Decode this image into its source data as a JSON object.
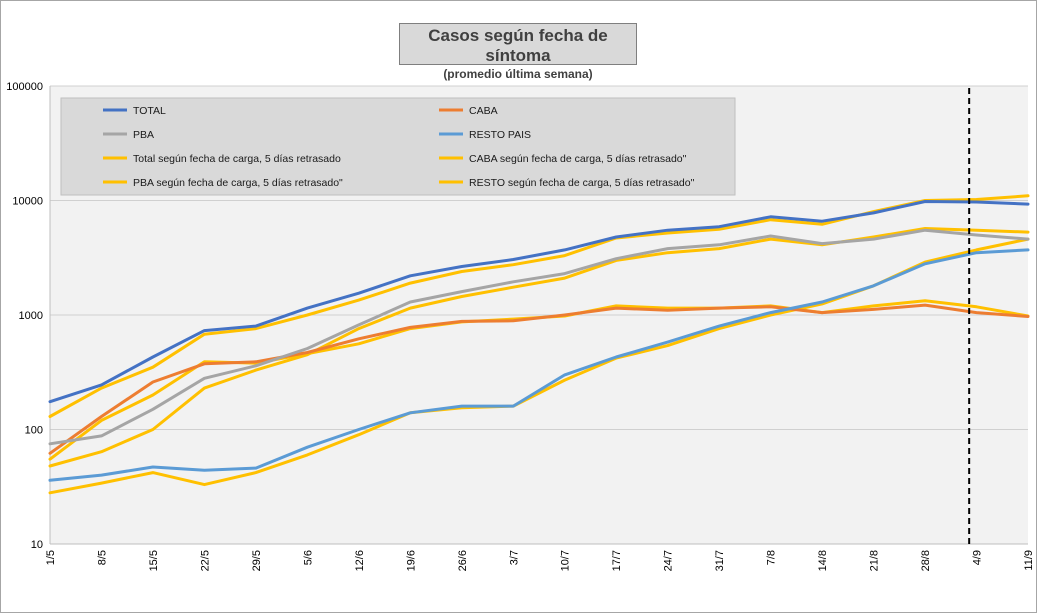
{
  "chart_data": {
    "type": "line",
    "title": "Casos según fecha de síntoma",
    "subtitle": "(promedio última semana)",
    "yscale": "log",
    "ylim": [
      10,
      100000
    ],
    "ytick_labels": [
      "10",
      "100",
      "1000",
      "10000",
      "100000"
    ],
    "grid": "horizontal",
    "legend_position": "top-left",
    "x_start": "1/5",
    "x_end": "11/9",
    "xtick_labels": [
      "1/5",
      "8/5",
      "15/5",
      "22/5",
      "29/5",
      "5/6",
      "12/6",
      "19/6",
      "26/6",
      "3/7",
      "10/7",
      "17/7",
      "24/7",
      "31/7",
      "7/8",
      "14/8",
      "21/8",
      "28/8",
      "4/9",
      "11/9"
    ],
    "vline": {
      "x": "3/9",
      "style": "dashed",
      "color": "#000000"
    },
    "series": [
      {
        "name": "TOTAL",
        "color": "#4472c4",
        "x": [
          "1/5",
          "8/5",
          "15/5",
          "22/5",
          "29/5",
          "5/6",
          "12/6",
          "19/6",
          "26/6",
          "3/7",
          "10/7",
          "17/7",
          "24/7",
          "31/7",
          "7/8",
          "14/8",
          "21/8",
          "28/8",
          "4/9",
          "11/9"
        ],
        "values": [
          175,
          245,
          430,
          730,
          800,
          1150,
          1550,
          2200,
          2650,
          3050,
          3700,
          4800,
          5500,
          5900,
          7200,
          6600,
          7800,
          9800,
          9700,
          9300
        ]
      },
      {
        "name": "CABA",
        "color": "#ed7d31",
        "x": [
          "1/5",
          "8/5",
          "15/5",
          "22/5",
          "29/5",
          "5/6",
          "12/6",
          "19/6",
          "26/6",
          "3/7",
          "10/7",
          "17/7",
          "24/7",
          "31/7",
          "7/8",
          "14/8",
          "21/8",
          "28/8",
          "4/9",
          "11/9"
        ],
        "values": [
          62,
          130,
          260,
          375,
          390,
          470,
          620,
          780,
          880,
          890,
          1000,
          1150,
          1100,
          1150,
          1180,
          1050,
          1120,
          1220,
          1050,
          970
        ]
      },
      {
        "name": "PBA",
        "color": "#a5a5a5",
        "x": [
          "1/5",
          "8/5",
          "15/5",
          "22/5",
          "29/5",
          "5/6",
          "12/6",
          "19/6",
          "26/6",
          "3/7",
          "10/7",
          "17/7",
          "24/7",
          "31/7",
          "7/8",
          "14/8",
          "21/8",
          "28/8",
          "4/9",
          "11/9"
        ],
        "values": [
          75,
          88,
          150,
          280,
          360,
          510,
          820,
          1300,
          1600,
          1950,
          2300,
          3100,
          3800,
          4100,
          4900,
          4200,
          4600,
          5500,
          5000,
          4600
        ]
      },
      {
        "name": "RESTO PAIS",
        "color": "#5b9bd5",
        "x": [
          "1/5",
          "8/5",
          "15/5",
          "22/5",
          "29/5",
          "5/6",
          "12/6",
          "19/6",
          "26/6",
          "3/7",
          "10/7",
          "17/7",
          "24/7",
          "31/7",
          "7/8",
          "14/8",
          "21/8",
          "28/8",
          "4/9",
          "11/9"
        ],
        "values": [
          36,
          40,
          47,
          44,
          46,
          70,
          100,
          140,
          160,
          160,
          300,
          430,
          580,
          800,
          1050,
          1300,
          1800,
          2800,
          3500,
          3700
        ]
      },
      {
        "name": "Total según fecha de carga, 5 días retrasado",
        "color": "#ffc000",
        "x": [
          "1/5",
          "8/5",
          "15/5",
          "22/5",
          "29/5",
          "5/6",
          "12/6",
          "19/6",
          "26/6",
          "3/7",
          "10/7",
          "17/7",
          "24/7",
          "31/7",
          "7/8",
          "14/8",
          "21/8",
          "28/8",
          "4/9",
          "11/9"
        ],
        "values": [
          130,
          230,
          350,
          680,
          760,
          1000,
          1350,
          1900,
          2400,
          2750,
          3300,
          4700,
          5200,
          5600,
          6800,
          6200,
          8000,
          10000,
          10200,
          11000
        ]
      },
      {
        "name": "CABA según fecha de carga, 5 días retrasado\"",
        "color": "#ffc000",
        "x": [
          "1/5",
          "8/5",
          "15/5",
          "22/5",
          "29/5",
          "5/6",
          "12/6",
          "19/6",
          "26/6",
          "3/7",
          "10/7",
          "17/7",
          "24/7",
          "31/7",
          "7/8",
          "14/8",
          "21/8",
          "28/8",
          "4/9",
          "11/9"
        ],
        "values": [
          55,
          120,
          200,
          390,
          380,
          460,
          560,
          760,
          870,
          920,
          980,
          1200,
          1150,
          1150,
          1200,
          1050,
          1200,
          1330,
          1180,
          980
        ]
      },
      {
        "name": "PBA según fecha de carga, 5 días retrasado\"",
        "color": "#ffc000",
        "x": [
          "1/5",
          "8/5",
          "15/5",
          "22/5",
          "29/5",
          "5/6",
          "12/6",
          "19/6",
          "26/6",
          "3/7",
          "10/7",
          "17/7",
          "24/7",
          "31/7",
          "7/8",
          "14/8",
          "21/8",
          "28/8",
          "4/9",
          "11/9"
        ],
        "values": [
          48,
          64,
          100,
          230,
          330,
          450,
          760,
          1150,
          1450,
          1750,
          2100,
          3000,
          3500,
          3800,
          4600,
          4100,
          4800,
          5700,
          5500,
          5300
        ]
      },
      {
        "name": "RESTO según fecha de carga, 5 días retrasado\"",
        "color": "#ffc000",
        "x": [
          "1/5",
          "8/5",
          "15/5",
          "22/5",
          "29/5",
          "5/6",
          "12/6",
          "19/6",
          "26/6",
          "3/7",
          "10/7",
          "17/7",
          "24/7",
          "31/7",
          "7/8",
          "14/8",
          "21/8",
          "28/8",
          "4/9",
          "11/9"
        ],
        "values": [
          28,
          34,
          42,
          33,
          42,
          60,
          90,
          140,
          155,
          160,
          270,
          420,
          540,
          760,
          1000,
          1250,
          1800,
          2900,
          3700,
          4600
        ]
      }
    ]
  }
}
